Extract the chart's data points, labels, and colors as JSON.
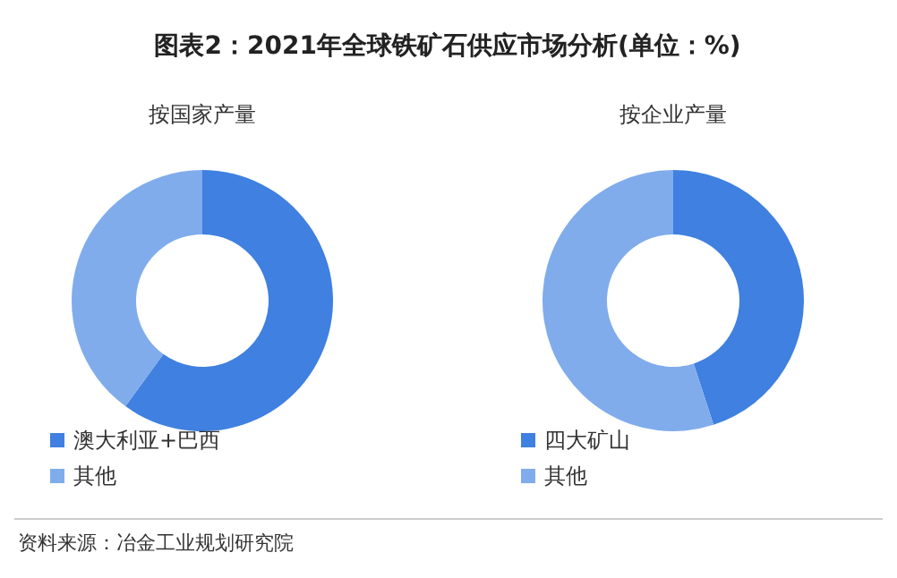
{
  "chart_data": [
    {
      "type": "donut",
      "title": "图表2：2021年全球铁矿石供应市场分析(单位：%)",
      "subtitle": "按国家产量",
      "categories": [
        "澳大利亚+巴西",
        "其他"
      ],
      "values": [
        60,
        40
      ],
      "colors": [
        "#3f80e0",
        "#80acec"
      ],
      "legend": "bottom",
      "annotations": [
        "资料来源：冶金工业规划研究院"
      ]
    },
    {
      "type": "donut",
      "subtitle": "按企业产量",
      "categories": [
        "四大矿山",
        "其他"
      ],
      "values": [
        45,
        55
      ],
      "colors": [
        "#3f80e0",
        "#80acec"
      ],
      "legend": "bottom"
    }
  ]
}
